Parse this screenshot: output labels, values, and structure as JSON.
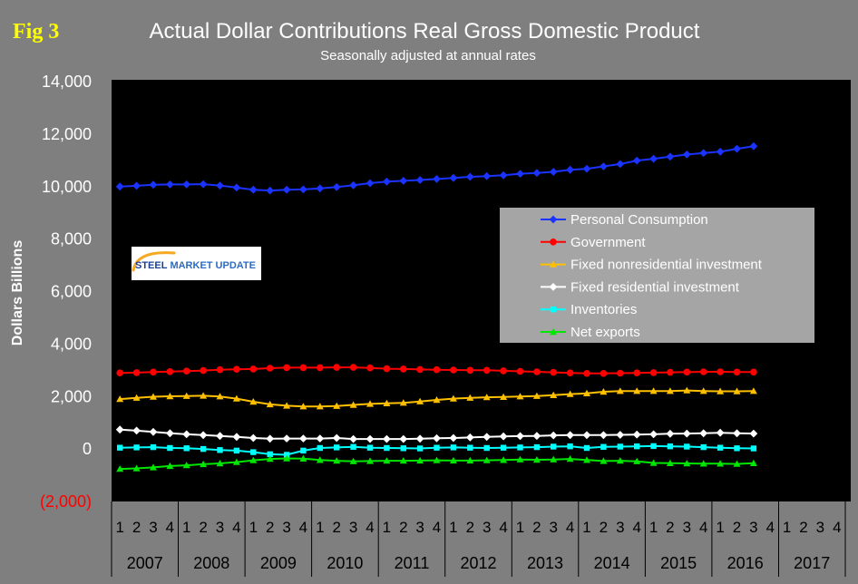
{
  "figure_label": "Fig 3",
  "colors": {
    "background": "#7f7f7f",
    "plot_background": "#000000",
    "legend_background": "#a5a5a5",
    "figure_label": "#ffff00",
    "axis_text": "#ffffff",
    "category_text": "#000000"
  },
  "logo": {
    "word1": "STEEL",
    "word2": "MARKET UPDATE",
    "box": "#ffffff",
    "primary": "#1c3f94",
    "secondary": "#2d6cc0",
    "accent": "#f7a823"
  },
  "chart_data": {
    "type": "line",
    "title": "Actual Dollar Contributions Real Gross Domestic Product",
    "subtitle": "Seasonally adjusted at annual rates",
    "ylabel": "Dollars Billions",
    "ylim": [
      -2000,
      14000
    ],
    "grid": false,
    "legend_position": "center-right",
    "yticks": [
      {
        "value": 14000,
        "label": "14,000"
      },
      {
        "value": 12000,
        "label": "12,000"
      },
      {
        "value": 10000,
        "label": "10,000"
      },
      {
        "value": 8000,
        "label": "8,000"
      },
      {
        "value": 6000,
        "label": "6,000"
      },
      {
        "value": 4000,
        "label": "4,000"
      },
      {
        "value": 2000,
        "label": "2,000"
      },
      {
        "value": 0,
        "label": "0"
      },
      {
        "value": -2000,
        "label": "(2,000)",
        "color": "#ff0000"
      }
    ],
    "years": [
      "2007",
      "2008",
      "2009",
      "2010",
      "2011",
      "2012",
      "2013",
      "2014",
      "2015",
      "2016",
      "2017"
    ],
    "quarters": [
      "1",
      "2",
      "3",
      "4"
    ],
    "series": [
      {
        "name": "Personal Consumption",
        "color": "#1a33ff",
        "marker": "diamond",
        "values": [
          10000,
          10030,
          10070,
          10080,
          10080,
          10090,
          10040,
          9960,
          9880,
          9850,
          9880,
          9890,
          9930,
          9980,
          10050,
          10130,
          10190,
          10220,
          10250,
          10290,
          10330,
          10370,
          10400,
          10430,
          10490,
          10520,
          10560,
          10640,
          10680,
          10770,
          10860,
          10990,
          11060,
          11140,
          11220,
          11280,
          11330,
          11440,
          11540
        ]
      },
      {
        "name": "Government",
        "color": "#ff0000",
        "marker": "circle",
        "values": [
          2900,
          2910,
          2930,
          2950,
          2970,
          2990,
          3020,
          3040,
          3050,
          3080,
          3100,
          3100,
          3100,
          3110,
          3110,
          3090,
          3060,
          3050,
          3030,
          3020,
          3010,
          3000,
          3000,
          2980,
          2960,
          2940,
          2920,
          2900,
          2880,
          2880,
          2890,
          2900,
          2910,
          2920,
          2930,
          2940,
          2940,
          2930,
          2930
        ]
      },
      {
        "name": "Fixed nonresidential investment",
        "color": "#ffc000",
        "marker": "triangle",
        "values": [
          1900,
          1950,
          1990,
          2010,
          2020,
          2030,
          2000,
          1920,
          1800,
          1700,
          1650,
          1620,
          1620,
          1640,
          1680,
          1720,
          1740,
          1760,
          1810,
          1870,
          1920,
          1950,
          1970,
          1980,
          2000,
          2020,
          2050,
          2090,
          2120,
          2180,
          2210,
          2210,
          2210,
          2210,
          2230,
          2210,
          2200,
          2200,
          2210
        ]
      },
      {
        "name": "Fixed residential investment",
        "color": "#ffffff",
        "marker": "diamond",
        "values": [
          740,
          700,
          650,
          600,
          560,
          530,
          500,
          460,
          420,
          390,
          400,
          400,
          400,
          420,
          380,
          380,
          380,
          380,
          390,
          410,
          420,
          440,
          460,
          480,
          490,
          500,
          520,
          530,
          530,
          530,
          540,
          550,
          560,
          580,
          590,
          600,
          620,
          600,
          590
        ]
      },
      {
        "name": "Inventories",
        "color": "#00ffff",
        "marker": "square",
        "values": [
          50,
          60,
          70,
          40,
          30,
          0,
          -40,
          -60,
          -120,
          -200,
          -220,
          -60,
          40,
          60,
          80,
          50,
          40,
          30,
          20,
          50,
          60,
          50,
          40,
          50,
          60,
          70,
          90,
          100,
          40,
          80,
          90,
          100,
          110,
          100,
          90,
          70,
          50,
          30,
          20
        ]
      },
      {
        "name": "Net exports",
        "color": "#00e600",
        "marker": "triangle",
        "values": [
          -760,
          -740,
          -700,
          -650,
          -620,
          -580,
          -550,
          -500,
          -430,
          -380,
          -360,
          -370,
          -420,
          -450,
          -470,
          -460,
          -450,
          -450,
          -440,
          -430,
          -440,
          -440,
          -430,
          -420,
          -400,
          -410,
          -400,
          -380,
          -420,
          -460,
          -450,
          -470,
          -530,
          -540,
          -550,
          -560,
          -560,
          -570,
          -540
        ]
      }
    ]
  }
}
